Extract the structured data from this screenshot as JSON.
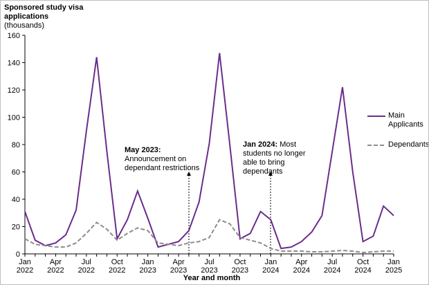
{
  "chart_data": {
    "type": "line",
    "title": "Sponsored study visa applications",
    "ylabel": "(thousands)",
    "xlabel": "Year and month",
    "categories": [
      "Jan 2022",
      null,
      null,
      "Apr 2022",
      null,
      null,
      "Jul 2022",
      null,
      null,
      "Oct 2022",
      null,
      null,
      "Jan 2023",
      null,
      null,
      "Apr 2023",
      null,
      null,
      "Jul 2023",
      null,
      null,
      "Oct 2023",
      null,
      null,
      "Jan 2024",
      null,
      null,
      "Apr 2024",
      null,
      null,
      "Jul 2024",
      null,
      null,
      "Oct 2024",
      null,
      null,
      "Jan 2025"
    ],
    "series": [
      {
        "name": "Main Applicants",
        "color": "#6a2c8c",
        "dash": false,
        "values": [
          31,
          10,
          6,
          8,
          14,
          32,
          90,
          144,
          75,
          11,
          25,
          46,
          26,
          5,
          7,
          9,
          17,
          38,
          81,
          147,
          80,
          11,
          15,
          31,
          25,
          4,
          5,
          9,
          16,
          28,
          75,
          122,
          60,
          9,
          13,
          35,
          28
        ]
      },
      {
        "name": "Dependants",
        "color": "#8c8c8c",
        "dash": true,
        "values": [
          11,
          7,
          6,
          5,
          5,
          8,
          15,
          23,
          18,
          10,
          15,
          19,
          17,
          8,
          7,
          6,
          8,
          9,
          12,
          25,
          22,
          12,
          10,
          8,
          4,
          2,
          2,
          2,
          1.5,
          1.5,
          2,
          2.5,
          2,
          1,
          1.5,
          2,
          2
        ]
      }
    ],
    "ylim": [
      0,
      160
    ],
    "yticks": [
      0,
      20,
      40,
      60,
      80,
      100,
      120,
      140,
      160
    ],
    "grid": false,
    "legend": "right",
    "annotations": [
      {
        "heading": "May 2023:",
        "text": "Announcement on dependant restrictions"
      },
      {
        "heading": "Jan 2024:",
        "text": "Most students no longer able to bring dependants"
      }
    ]
  }
}
